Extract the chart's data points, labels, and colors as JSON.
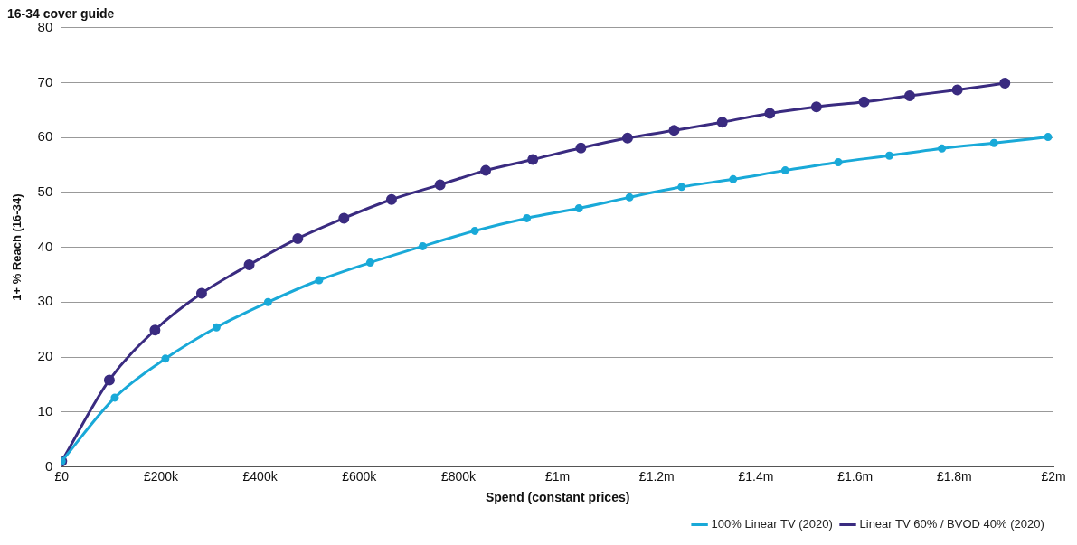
{
  "chart_data": {
    "type": "line",
    "title": "16-34 cover guide",
    "xlabel": "Spend (constant prices)",
    "ylabel": "1+ % Reach (16-34)",
    "xlim": [
      0,
      2000000
    ],
    "xticks": [
      {
        "value": 0,
        "label": "£0"
      },
      {
        "value": 200000,
        "label": "£200k"
      },
      {
        "value": 400000,
        "label": "£400k"
      },
      {
        "value": 600000,
        "label": "£600k"
      },
      {
        "value": 800000,
        "label": "£800k"
      },
      {
        "value": 1000000,
        "label": "£1m"
      },
      {
        "value": 1200000,
        "label": "£1.2m"
      },
      {
        "value": 1400000,
        "label": "£1.4m"
      },
      {
        "value": 1600000,
        "label": "£1.6m"
      },
      {
        "value": 1800000,
        "label": "£1.8m"
      },
      {
        "value": 2000000,
        "label": "£2m"
      }
    ],
    "ylim": [
      0,
      80
    ],
    "yticks": [
      0,
      10,
      20,
      30,
      40,
      50,
      60,
      70,
      80
    ],
    "grid": "y",
    "legend": "bottom right",
    "marker": "circle",
    "line_style": "solid",
    "series": [
      {
        "name": "100% Linear TV (2020)",
        "color": "#19a9d8",
        "x": [
          0,
          107000,
          209000,
          312000,
          416000,
          519000,
          622000,
          728000,
          833000,
          938000,
          1043000,
          1145000,
          1250000,
          1354000,
          1459000,
          1566000,
          1669000,
          1775000,
          1880000,
          1989000
        ],
        "values": [
          1,
          12.6,
          19.7,
          25.4,
          30.0,
          34.0,
          37.2,
          40.2,
          43.0,
          45.3,
          47.1,
          49.1,
          51.0,
          52.4,
          54.0,
          55.5,
          56.7,
          58.0,
          59.0,
          60.1
        ]
      },
      {
        "name": "Linear TV 60% / BVOD 40% (2020)",
        "color": "#3a2b80",
        "x": [
          0,
          96000,
          188000,
          282000,
          378000,
          476000,
          569000,
          665000,
          763000,
          855000,
          950000,
          1047000,
          1141000,
          1235000,
          1332000,
          1428000,
          1522000,
          1618000,
          1710000,
          1806000,
          1902000
        ],
        "values": [
          1,
          15.8,
          24.9,
          31.6,
          36.8,
          41.6,
          45.3,
          48.7,
          51.4,
          54.0,
          56.0,
          58.1,
          59.9,
          61.3,
          62.8,
          64.4,
          65.6,
          66.5,
          67.6,
          68.7,
          69.9
        ]
      }
    ]
  }
}
